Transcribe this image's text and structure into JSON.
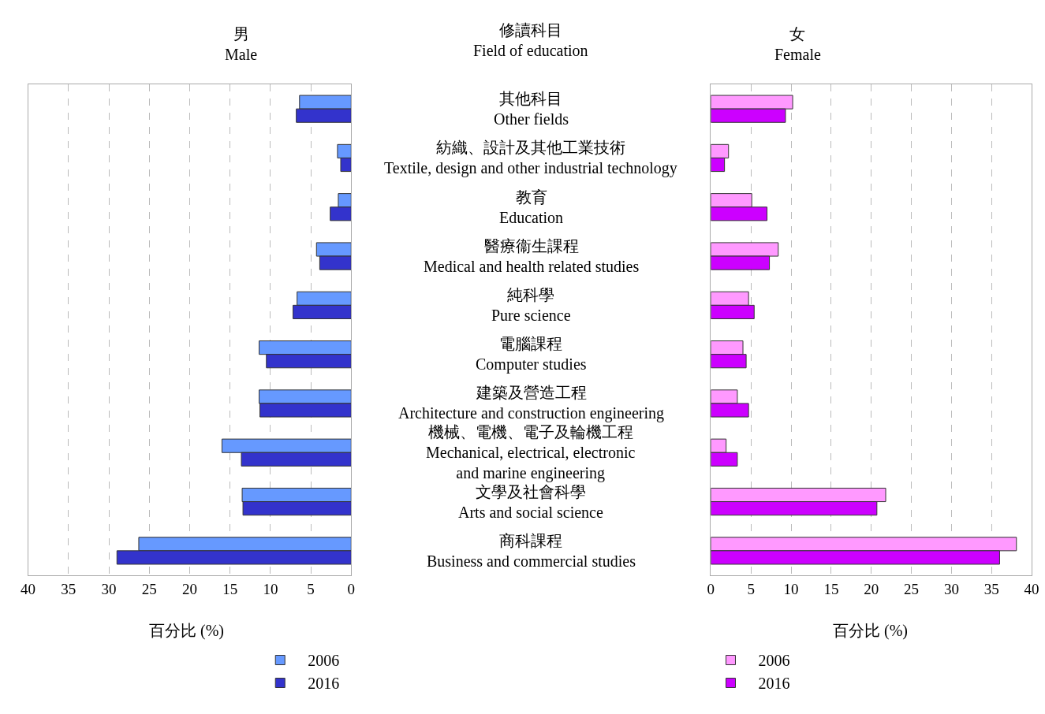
{
  "chart_data": [
    {
      "type": "bar",
      "orientation": "horizontal",
      "title": "男\nMale",
      "xlabel": "百分比 (%)",
      "categories": [
        "其他科目\nOther fields",
        "紡織、設計及其他工業技術\nTextile, design and other industrial technology",
        "教育\nEducation",
        "醫療衞生課程\nMedical and health related studies",
        "純科學\nPure science",
        "電腦課程\nComputer studies",
        "建築及營造工程\nArchitecture and construction engineering",
        "機械、電機、電子及輪機工程\nMechanical, electrical, electronic\nand marine engineering",
        "文學及社會科學\nArts and social science",
        "商科課程\nBusiness and commercial studies"
      ],
      "series": [
        {
          "name": "2006",
          "color": "#6699ff",
          "values": [
            6.4,
            1.7,
            1.6,
            4.3,
            6.7,
            11.4,
            11.4,
            16.0,
            13.5,
            26.3
          ]
        },
        {
          "name": "2016",
          "color": "#3333cc",
          "values": [
            6.8,
            1.3,
            2.6,
            3.9,
            7.2,
            10.5,
            11.3,
            13.6,
            13.4,
            29.0
          ]
        }
      ],
      "xlim": [
        40,
        0
      ],
      "xticks": [
        40,
        35,
        30,
        25,
        20,
        15,
        10,
        5,
        0
      ],
      "grid": "x",
      "legend": "bottom"
    },
    {
      "type": "bar",
      "orientation": "horizontal",
      "title": "女\nFemale",
      "ylabel": "修讀科目\nField of education",
      "xlabel": "百分比 (%)",
      "categories": [
        null,
        null,
        null,
        null,
        null,
        null,
        null,
        null,
        null,
        null
      ],
      "tick_labels": "x",
      "series": [
        {
          "name": "2006",
          "color": "#ff99ff",
          "values": [
            10.2,
            2.2,
            5.1,
            8.4,
            4.7,
            4.0,
            3.3,
            1.9,
            21.8,
            38.1
          ]
        },
        {
          "name": "2016",
          "color": "#cc00ff",
          "values": [
            9.3,
            1.7,
            7.0,
            7.3,
            5.4,
            4.4,
            4.7,
            3.3,
            20.7,
            36.0
          ]
        }
      ],
      "xlim": [
        0,
        40
      ],
      "xticks": [
        0,
        5,
        10,
        15,
        20,
        25,
        30,
        35,
        40
      ],
      "grid": "x",
      "legend": "bottom"
    }
  ]
}
